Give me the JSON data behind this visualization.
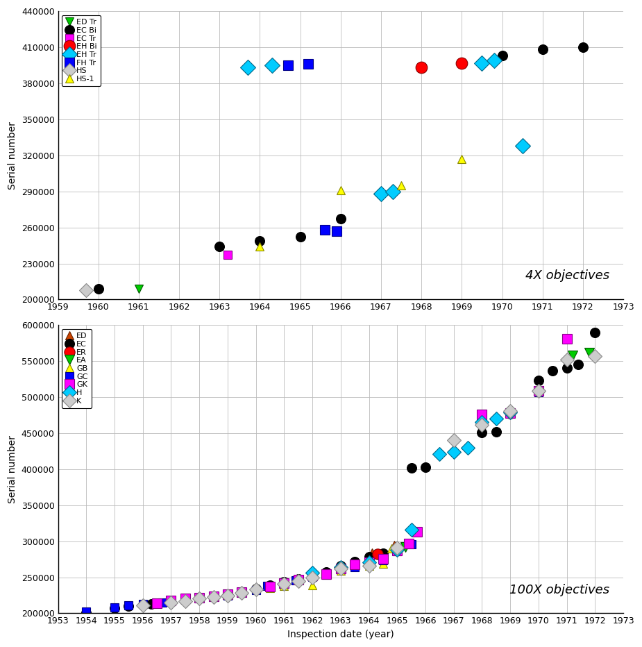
{
  "top_plot": {
    "title": "4X objectives",
    "ylim": [
      200000,
      440000
    ],
    "xlim": [
      1959,
      1973
    ],
    "yticks": [
      200000,
      230000,
      260000,
      290000,
      320000,
      350000,
      380000,
      410000,
      440000
    ],
    "xticks": [
      1959,
      1960,
      1961,
      1962,
      1963,
      1964,
      1965,
      1966,
      1967,
      1968,
      1969,
      1970,
      1971,
      1972,
      1973
    ],
    "series": {
      "ED Tr": {
        "marker": "v",
        "markersize": 9,
        "markerfacecolor": "#00cc00",
        "markeredgecolor": "#005500",
        "data": [
          [
            1961,
            209000
          ]
        ]
      },
      "EC Bi": {
        "marker": "o",
        "markersize": 10,
        "markerfacecolor": "#000000",
        "markeredgecolor": "#000000",
        "data": [
          [
            1960,
            209000
          ],
          [
            1963,
            244000
          ],
          [
            1964,
            249000
          ],
          [
            1965,
            252000
          ],
          [
            1966,
            267000
          ],
          [
            1967,
            288000
          ],
          [
            1968,
            393000
          ],
          [
            1969,
            397000
          ],
          [
            1970,
            403000
          ],
          [
            1971,
            408000
          ],
          [
            1972,
            410000
          ]
        ]
      },
      "EC Tr": {
        "marker": "s",
        "markersize": 9,
        "markerfacecolor": "#ff00ff",
        "markeredgecolor": "#880088",
        "data": [
          [
            1963.2,
            237000
          ]
        ]
      },
      "EH Bi": {
        "marker": "o",
        "markersize": 12,
        "markerfacecolor": "#ff0000",
        "markeredgecolor": "#880000",
        "data": [
          [
            1968,
            393000
          ],
          [
            1969,
            397000
          ]
        ]
      },
      "EH Tr": {
        "marker": "D",
        "markersize": 11,
        "markerfacecolor": "#00ccff",
        "markeredgecolor": "#006688",
        "data": [
          [
            1963.7,
            393000
          ],
          [
            1964.3,
            395000
          ],
          [
            1967,
            288000
          ],
          [
            1967.3,
            290000
          ],
          [
            1969.5,
            397000
          ],
          [
            1969.8,
            399000
          ],
          [
            1970.5,
            328000
          ]
        ]
      },
      "FH Tr": {
        "marker": "s",
        "markersize": 10,
        "markerfacecolor": "#0000ff",
        "markeredgecolor": "#000088",
        "data": [
          [
            1964.7,
            395000
          ],
          [
            1965.2,
            396000
          ],
          [
            1965.6,
            258000
          ],
          [
            1965.9,
            257000
          ]
        ]
      },
      "HS": {
        "marker": "D",
        "markersize": 10,
        "markerfacecolor": "#cccccc",
        "markeredgecolor": "#888888",
        "data": [
          [
            1959.7,
            208000
          ]
        ]
      },
      "HS-1": {
        "marker": "^",
        "markersize": 9,
        "markerfacecolor": "#ffff00",
        "markeredgecolor": "#888800",
        "data": [
          [
            1964,
            244000
          ],
          [
            1966,
            291000
          ],
          [
            1967.5,
            295000
          ],
          [
            1969,
            317000
          ]
        ]
      }
    }
  },
  "bottom_plot": {
    "title": "100X objectives",
    "ylim": [
      200000,
      600000
    ],
    "xlim": [
      1953,
      1973
    ],
    "yticks": [
      200000,
      250000,
      300000,
      350000,
      400000,
      450000,
      500000,
      550000,
      600000
    ],
    "xticks": [
      1953,
      1954,
      1955,
      1956,
      1957,
      1958,
      1959,
      1960,
      1961,
      1962,
      1963,
      1964,
      1965,
      1966,
      1967,
      1968,
      1969,
      1970,
      1971,
      1972,
      1973
    ],
    "series": {
      "ED": {
        "marker": "^",
        "markersize": 9,
        "markerfacecolor": "#cc4400",
        "markeredgecolor": "#662200",
        "data": [
          [
            1964.1,
            284000
          ],
          [
            1964.9,
            295000
          ]
        ]
      },
      "EC": {
        "marker": "o",
        "markersize": 10,
        "markerfacecolor": "#000000",
        "markeredgecolor": "#000000",
        "data": [
          [
            1954,
            200000
          ],
          [
            1955,
            207000
          ],
          [
            1955.5,
            210000
          ],
          [
            1956.3,
            213000
          ],
          [
            1957,
            217000
          ],
          [
            1957.5,
            220000
          ],
          [
            1958,
            222000
          ],
          [
            1958.5,
            224000
          ],
          [
            1959,
            226000
          ],
          [
            1959.5,
            228000
          ],
          [
            1960,
            234000
          ],
          [
            1960.5,
            239000
          ],
          [
            1961,
            244000
          ],
          [
            1961.5,
            248000
          ],
          [
            1962,
            253000
          ],
          [
            1962.5,
            257000
          ],
          [
            1963,
            266000
          ],
          [
            1963.5,
            272000
          ],
          [
            1964,
            278000
          ],
          [
            1964.5,
            283000
          ],
          [
            1965.5,
            402000
          ],
          [
            1966,
            403000
          ],
          [
            1968,
            451000
          ],
          [
            1968.5,
            452000
          ],
          [
            1969,
            477000
          ],
          [
            1970,
            523000
          ],
          [
            1970.5,
            537000
          ],
          [
            1971,
            540000
          ],
          [
            1971.4,
            545000
          ],
          [
            1972,
            590000
          ]
        ]
      },
      "ER": {
        "marker": "o",
        "markersize": 11,
        "markerfacecolor": "#ff0000",
        "markeredgecolor": "#880000",
        "data": [
          [
            1964.3,
            282000
          ]
        ]
      },
      "EA": {
        "marker": "v",
        "markersize": 10,
        "markerfacecolor": "#00cc00",
        "markeredgecolor": "#005500",
        "data": [
          [
            1965.3,
            292000
          ],
          [
            1971.2,
            558000
          ],
          [
            1971.8,
            562000
          ]
        ]
      },
      "GB": {
        "marker": "^",
        "markersize": 9,
        "markerfacecolor": "#ffff00",
        "markeredgecolor": "#888800",
        "data": [
          [
            1960,
            233000
          ],
          [
            1960.5,
            235000
          ],
          [
            1961,
            238000
          ],
          [
            1962,
            239000
          ],
          [
            1963,
            259000
          ],
          [
            1964,
            266000
          ],
          [
            1964.5,
            269000
          ],
          [
            1964.8,
            290000
          ]
        ]
      },
      "GC": {
        "marker": "s",
        "markersize": 9,
        "markerfacecolor": "#0000ff",
        "markeredgecolor": "#000088",
        "data": [
          [
            1954,
            202000
          ],
          [
            1955,
            208000
          ],
          [
            1955.5,
            211000
          ],
          [
            1956,
            213000
          ],
          [
            1956.7,
            215000
          ],
          [
            1957,
            218000
          ],
          [
            1957.5,
            219000
          ],
          [
            1958,
            222000
          ],
          [
            1958.5,
            223000
          ],
          [
            1959,
            225000
          ],
          [
            1959.5,
            228000
          ],
          [
            1960,
            232000
          ],
          [
            1960.4,
            238000
          ],
          [
            1961,
            243000
          ],
          [
            1961.4,
            246000
          ],
          [
            1962,
            251000
          ],
          [
            1962.5,
            253000
          ],
          [
            1963.5,
            264000
          ],
          [
            1964.5,
            274000
          ],
          [
            1965,
            286000
          ],
          [
            1965.5,
            296000
          ],
          [
            1970,
            507000
          ]
        ]
      },
      "GK": {
        "marker": "s",
        "markersize": 10,
        "markerfacecolor": "#ff00ff",
        "markeredgecolor": "#880088",
        "data": [
          [
            1956.5,
            214000
          ],
          [
            1957,
            218000
          ],
          [
            1957.5,
            221000
          ],
          [
            1958,
            222000
          ],
          [
            1958.5,
            224000
          ],
          [
            1959,
            226000
          ],
          [
            1959.5,
            229000
          ],
          [
            1960.5,
            237000
          ],
          [
            1961,
            242000
          ],
          [
            1961.5,
            247000
          ],
          [
            1962,
            252000
          ],
          [
            1962.5,
            254000
          ],
          [
            1963,
            262000
          ],
          [
            1963.5,
            268000
          ],
          [
            1964,
            271000
          ],
          [
            1964.5,
            276000
          ],
          [
            1965,
            287000
          ],
          [
            1965.4,
            297000
          ],
          [
            1965.7,
            313000
          ],
          [
            1968,
            476000
          ],
          [
            1969,
            478000
          ],
          [
            1970,
            509000
          ],
          [
            1971,
            581000
          ]
        ]
      },
      "H": {
        "marker": "D",
        "markersize": 10,
        "markerfacecolor": "#00ccff",
        "markeredgecolor": "#006688",
        "data": [
          [
            1962,
            256000
          ],
          [
            1963,
            264000
          ],
          [
            1964,
            271000
          ],
          [
            1965,
            288000
          ],
          [
            1965.5,
            316000
          ],
          [
            1966.5,
            421000
          ],
          [
            1967,
            424000
          ],
          [
            1967.5,
            430000
          ],
          [
            1968,
            465000
          ],
          [
            1968.5,
            470000
          ],
          [
            1969,
            479000
          ]
        ]
      },
      "K": {
        "marker": "D",
        "markersize": 10,
        "markerfacecolor": "#cccccc",
        "markeredgecolor": "#888888",
        "data": [
          [
            1956,
            211000
          ],
          [
            1957,
            215000
          ],
          [
            1957.5,
            217000
          ],
          [
            1958,
            221000
          ],
          [
            1958.5,
            223000
          ],
          [
            1959,
            225000
          ],
          [
            1959.5,
            228000
          ],
          [
            1960,
            233000
          ],
          [
            1961,
            241000
          ],
          [
            1961.5,
            245000
          ],
          [
            1962,
            250000
          ],
          [
            1963,
            262000
          ],
          [
            1964,
            266000
          ],
          [
            1965,
            291000
          ],
          [
            1967,
            440000
          ],
          [
            1968,
            461000
          ],
          [
            1969,
            481000
          ],
          [
            1970,
            509000
          ],
          [
            1971,
            552000
          ],
          [
            1972,
            557000
          ]
        ]
      }
    }
  },
  "xlabel": "Inspection date (year)",
  "ylabel": "Serial number",
  "background_color": "#ffffff",
  "grid_color": "#bbbbbb"
}
